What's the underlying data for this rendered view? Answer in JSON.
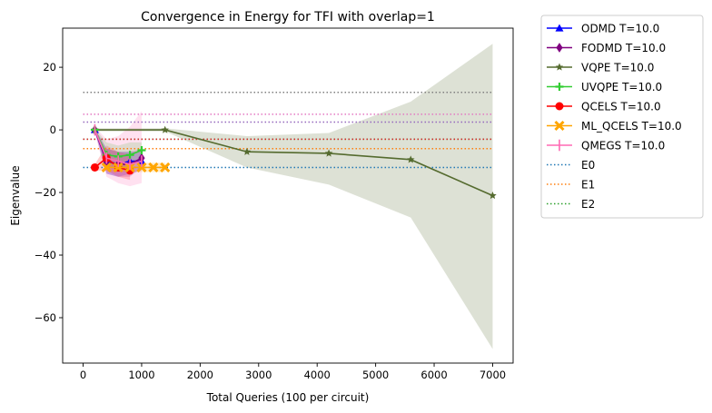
{
  "chart_data": {
    "type": "line",
    "title": "Convergence in Energy for TFI with overlap=1",
    "xlabel": "Total Queries (100 per circuit)",
    "ylabel": "Eigenvalue",
    "xlim": [
      -350,
      7350
    ],
    "ylim": [
      -74.5,
      32.5
    ],
    "xticks": [
      0,
      1000,
      2000,
      3000,
      4000,
      5000,
      6000,
      7000
    ],
    "yticks": [
      20,
      0,
      -20,
      -40,
      -60
    ],
    "ytick_labels": [
      "20",
      "0",
      "−20",
      "−40",
      "−60"
    ],
    "grid": false,
    "legend_position": "outside-right",
    "series": [
      {
        "name": "ODMD T=10.0",
        "color": "#0000ff",
        "marker": "triangle",
        "x": [
          200,
          400,
          600,
          800,
          1000
        ],
        "y": [
          0,
          -10,
          -11,
          -10,
          -10
        ],
        "band_upper": [
          0.5,
          -6,
          -7,
          -7,
          -7
        ],
        "band_lower": [
          -0.5,
          -14,
          -15,
          -14,
          -13
        ]
      },
      {
        "name": "FODMD T=10.0",
        "color": "#800080",
        "marker": "diamond",
        "x": [
          200,
          400,
          600,
          800,
          1000
        ],
        "y": [
          0,
          -10,
          -11,
          -11,
          -9
        ],
        "band_upper": [
          0.5,
          -6,
          -7,
          -7,
          -6
        ],
        "band_lower": [
          -0.5,
          -14,
          -15,
          -15,
          -12
        ]
      },
      {
        "name": "VQPE T=10.0",
        "color": "#556b2f",
        "marker": "star",
        "x": [
          200,
          1400,
          2800,
          4200,
          5600,
          7000
        ],
        "y": [
          0,
          0,
          -7,
          -7.5,
          -9.5,
          -21
        ],
        "band_upper": [
          0.5,
          0.5,
          -2,
          -1,
          9,
          27.5
        ],
        "band_lower": [
          -0.5,
          -0.5,
          -12,
          -17.5,
          -28,
          -70
        ]
      },
      {
        "name": "UVQPE T=10.0",
        "color": "#32cd32",
        "marker": "plus",
        "x": [
          200,
          400,
          600,
          800,
          1000
        ],
        "y": [
          0,
          -8,
          -8.5,
          -8,
          -6.5
        ],
        "band_upper": [
          0.5,
          -4,
          -5,
          -4,
          -4
        ],
        "band_lower": [
          -0.5,
          -12,
          -12,
          -12,
          -9
        ]
      },
      {
        "name": "QCELS T=10.0",
        "color": "#ff0000",
        "marker": "circle",
        "x": [
          200,
          400,
          600,
          800
        ],
        "y": [
          -12,
          -9,
          -12,
          -13
        ],
        "band_upper": [
          -11,
          -5,
          -7,
          -8
        ],
        "band_lower": [
          -13,
          -13,
          -15,
          -16
        ]
      },
      {
        "name": "ML_QCELS T=10.0",
        "color": "#ffa500",
        "marker": "x",
        "x": [
          400,
          600,
          800,
          1000,
          1200,
          1400
        ],
        "y": [
          -12,
          -12,
          -12,
          -12,
          -12,
          -12
        ],
        "band_upper": [
          -10.5,
          -10.5,
          -10.5,
          -10.5,
          -10.5,
          -10.5
        ],
        "band_lower": [
          -13.5,
          -13.5,
          -13.5,
          -13.5,
          -13.5,
          -13.5
        ]
      },
      {
        "name": "QMEGS T=10.0",
        "color": "#ff69b4",
        "marker": "vline",
        "x": [
          200,
          400,
          600,
          800,
          1000
        ],
        "y": [
          0,
          -9,
          -10,
          -11,
          -10
        ],
        "band_upper": [
          1,
          -3,
          -2,
          1,
          6
        ],
        "band_lower": [
          -1,
          -15,
          -17,
          -18,
          -17
        ]
      }
    ],
    "reference_lines": [
      {
        "name": "E0",
        "color": "#1f77b4",
        "y": -12
      },
      {
        "name": "E1",
        "color": "#ff7f0e",
        "y": -6
      },
      {
        "name": "E2",
        "color": "#2ca02c",
        "y": -3
      },
      {
        "color": "#d62728",
        "y": -3
      },
      {
        "color": "#9467bd",
        "y": 2.5
      },
      {
        "color": "#e377c2",
        "y": 5
      },
      {
        "color": "#7f7f7f",
        "y": 12
      }
    ]
  }
}
